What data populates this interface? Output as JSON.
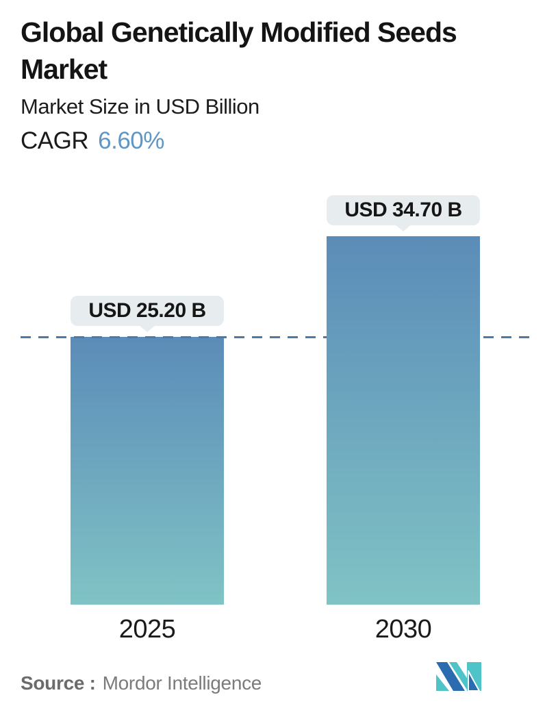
{
  "header": {
    "title_line1": "Global Genetically Modified Seeds",
    "title_line2": "Market",
    "subtitle": "Market Size in USD Billion",
    "cagr_label": "CAGR",
    "cagr_value": "6.60%"
  },
  "chart_data": {
    "type": "bar",
    "title": "Global Genetically Modified Seeds Market",
    "subtitle": "Market Size in USD Billion",
    "cagr": "6.60%",
    "categories": [
      "2025",
      "2030"
    ],
    "values": [
      25.2,
      34.7
    ],
    "value_labels": [
      "USD 25.20 B",
      "USD 34.70 B"
    ],
    "unit": "USD Billion",
    "ylim": [
      0,
      40
    ],
    "grid": "off",
    "legend": "none",
    "reference_line": {
      "style": "dashed",
      "value": 25.2,
      "color": "#4b7aa6"
    },
    "bar_gradient_top": "#5b8cb8",
    "bar_gradient_bottom": "#80c3c5"
  },
  "footer": {
    "source_label": "Source :",
    "source_value": "Mordor Intelligence",
    "logo_name": "mordor-intelligence-logo"
  },
  "colors": {
    "accent_blue_text": "#5e96c6",
    "tooltip_bg": "#e7edee",
    "dashed_line": "#4b7aa6",
    "bar_top": "#5b8cb8",
    "bar_bottom": "#80c3c5",
    "source_text": "#6f6f6f",
    "logo_blue": "#2b6cb1",
    "logo_teal": "#4fc4c8"
  }
}
